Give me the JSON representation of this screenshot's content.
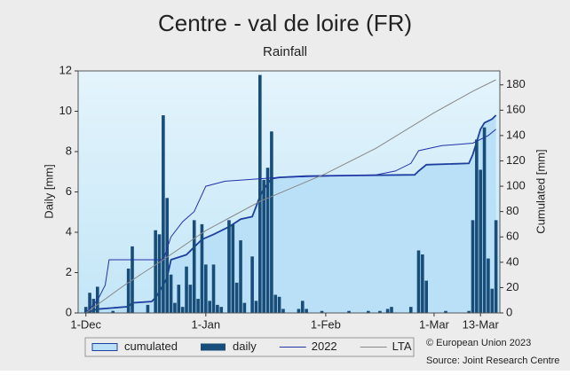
{
  "chart_data": {
    "type": "bar-line",
    "title": "Centre - val de loire (FR)",
    "subtitle": "Rainfall",
    "ylabel": "Daily [mm]",
    "y2label": "Cumulated [mm]",
    "xlim": [
      -2,
      107
    ],
    "xticks": [
      {
        "value": 0,
        "label": "1-Dec"
      },
      {
        "value": 31,
        "label": "1-Jan"
      },
      {
        "value": 62,
        "label": "1-Feb"
      },
      {
        "value": 90,
        "label": "1-Mar"
      },
      {
        "value": 102,
        "label": "13-Mar"
      }
    ],
    "ylim": [
      0,
      12
    ],
    "yticks": [
      0,
      2,
      4,
      6,
      8,
      10,
      12
    ],
    "y2lim": [
      0,
      191
    ],
    "y2ticks": [
      0,
      20,
      40,
      60,
      80,
      100,
      120,
      140,
      160,
      180
    ],
    "series": [
      {
        "name": "cumulated",
        "kind": "area",
        "axis": "y2",
        "color": "#1d3fa0",
        "fill": "#b9e0f6",
        "x": [
          0,
          3,
          11,
          12,
          17,
          18,
          20,
          21,
          22,
          26,
          28,
          30,
          33,
          37,
          40,
          43,
          45,
          46,
          48,
          50,
          57,
          70,
          85,
          86,
          88,
          99,
          100,
          101,
          102,
          103,
          105,
          106
        ],
        "values": [
          0,
          3,
          5,
          8,
          9,
          12,
          22,
          28,
          42,
          46,
          52,
          58,
          62,
          68,
          74,
          76,
          92,
          98,
          106,
          107,
          108,
          108.5,
          109,
          112,
          117,
          118,
          125,
          135,
          145,
          150,
          153,
          156
        ]
      },
      {
        "name": "daily",
        "kind": "bar",
        "axis": "y",
        "color": "#174d78",
        "x": [
          0,
          1,
          2,
          3,
          7,
          11,
          12,
          16,
          18,
          19,
          20,
          21,
          22,
          23,
          24,
          25,
          26,
          27,
          28,
          29,
          30,
          31,
          32,
          33,
          34,
          35,
          37,
          38,
          39,
          40,
          41,
          43,
          44,
          45,
          46,
          47,
          48,
          49,
          50,
          51,
          55,
          56,
          57,
          61,
          68,
          73,
          76,
          78,
          79,
          84,
          86,
          87,
          88,
          93,
          99,
          100,
          101,
          102,
          103,
          104,
          105,
          106
        ],
        "values": [
          0.3,
          1.0,
          0.7,
          1.3,
          0.1,
          2.2,
          3.3,
          0.4,
          4.1,
          3.9,
          9.8,
          5.7,
          1.9,
          0.5,
          1.4,
          0.3,
          2.3,
          1.4,
          4.6,
          0.7,
          4.4,
          2.4,
          0.6,
          2.4,
          0.4,
          0.3,
          4.6,
          4.4,
          1.5,
          3.6,
          0.5,
          2.8,
          0.6,
          11.8,
          6.6,
          7.2,
          9.0,
          0.9,
          0.8,
          0.2,
          0.2,
          0.6,
          0.2,
          0.1,
          0.1,
          0.1,
          0.1,
          0.2,
          0.3,
          0.3,
          3.1,
          2.9,
          1.6,
          0.1,
          0.1,
          4.6,
          8.6,
          7.1,
          9.2,
          2.7,
          1.2,
          4.6
        ]
      },
      {
        "name": "2022",
        "kind": "line",
        "axis": "y2",
        "color": "#2233a8",
        "x": [
          0,
          3,
          5,
          6,
          20,
          22,
          25,
          28,
          31,
          36,
          50,
          62,
          75,
          80,
          84,
          86,
          92,
          100,
          104,
          106
        ],
        "values": [
          0,
          10,
          22,
          42,
          42,
          60,
          72,
          80,
          100,
          104,
          107,
          108,
          109,
          112,
          118,
          128,
          132,
          134,
          140,
          145
        ]
      },
      {
        "name": "LTA",
        "kind": "line",
        "axis": "y2",
        "color": "#888888",
        "x": [
          0,
          10,
          20,
          31,
          45,
          62,
          75,
          90,
          100,
          106
        ],
        "values": [
          0,
          22,
          42,
          65,
          88,
          110,
          130,
          158,
          175,
          184
        ]
      }
    ],
    "source": [
      "© European Union 2023",
      "Source: Joint Research Centre"
    ]
  }
}
